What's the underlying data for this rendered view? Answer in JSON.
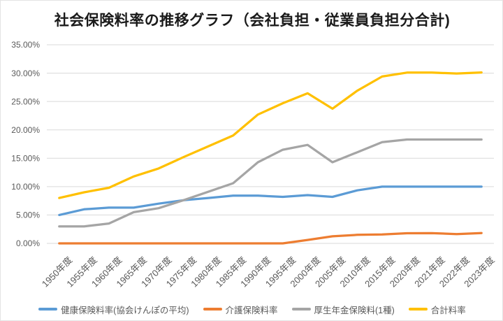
{
  "title": "社会保険料率の推移グラフ（会社負担・従業員負担分合計)",
  "colors": {
    "health": "#5B9BD5",
    "nursing": "#ED7D31",
    "pension": "#A5A5A5",
    "total": "#FFC000",
    "gridline": "#D9D9D9",
    "axis_text": "#595959",
    "title_text": "#1a1a1a"
  },
  "chart_data": {
    "type": "line",
    "title": "社会保険料率の推移グラフ（会社負担・従業員負担分合計)",
    "categories": [
      "1950年度",
      "1955年度",
      "1960年度",
      "1965年度",
      "1970年度",
      "1975年度",
      "1980年度",
      "1985年度",
      "1990年度",
      "1995年度",
      "2000年度",
      "2005年度",
      "2010年度",
      "2015年度",
      "2020年度",
      "2021年度",
      "2022年度",
      "2023年度"
    ],
    "series": [
      {
        "id": "health-insurance-rate",
        "name": "健康保険料率(協会けんぽの平均)",
        "color": "#5B9BD5",
        "values": [
          5.0,
          6.0,
          6.3,
          6.3,
          7.0,
          7.6,
          8.0,
          8.4,
          8.4,
          8.2,
          8.5,
          8.2,
          9.34,
          10.0,
          10.0,
          10.0,
          10.0,
          10.0
        ]
      },
      {
        "id": "nursing-care-insurance-rate",
        "name": "介護保険料率",
        "color": "#ED7D31",
        "values": [
          0,
          0,
          0,
          0,
          0,
          0,
          0,
          0,
          0,
          0,
          0.6,
          1.25,
          1.5,
          1.58,
          1.79,
          1.8,
          1.64,
          1.82
        ]
      },
      {
        "id": "welfare-pension-rate",
        "name": "厚生年金保険料(1種)",
        "color": "#A5A5A5",
        "values": [
          3.0,
          3.0,
          3.5,
          5.5,
          6.2,
          7.6,
          9.1,
          10.6,
          14.3,
          16.5,
          17.35,
          14.29,
          16.06,
          17.83,
          18.3,
          18.3,
          18.3,
          18.3
        ]
      },
      {
        "id": "total-rate",
        "name": "合計料率",
        "color": "#FFC000",
        "values": [
          8.0,
          9.0,
          9.8,
          11.8,
          13.2,
          15.2,
          17.1,
          19.0,
          22.7,
          24.7,
          26.45,
          23.74,
          26.9,
          29.41,
          30.09,
          30.1,
          29.94,
          30.12
        ]
      }
    ],
    "xlabel": "",
    "ylabel": "",
    "ylim": [
      0,
      35
    ],
    "ytick_step": 5,
    "ytick_labels": [
      "0.00%",
      "5.00%",
      "10.00%",
      "15.00%",
      "20.00%",
      "25.00%",
      "30.00%",
      "35.00%"
    ],
    "grid": true,
    "legend_position": "bottom"
  }
}
